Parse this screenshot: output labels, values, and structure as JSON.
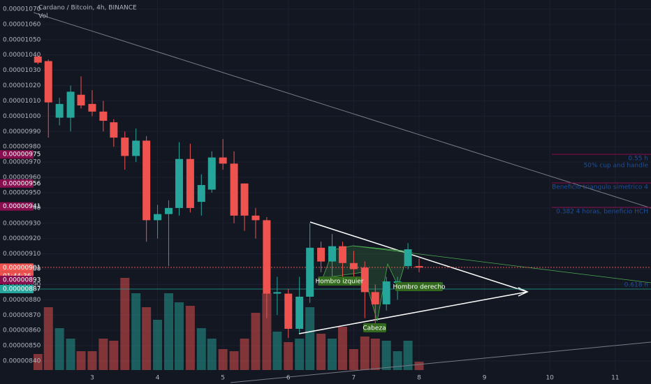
{
  "chart_data": {
    "type": "candlestick",
    "title": "Cardano / Bitcoin, 4h, BINANCE",
    "volume_label": "Vol",
    "countdown": "01:44:36",
    "up_color": "#26a69a",
    "down_color": "#ef5350",
    "x": [
      2.17,
      2.33,
      2.5,
      2.67,
      2.83,
      3,
      3.17,
      3.33,
      3.5,
      3.67,
      3.83,
      4,
      4.17,
      4.33,
      4.5,
      4.67,
      4.83,
      5,
      5.17,
      5.33,
      5.5,
      5.67,
      5.83,
      6,
      6.17,
      6.33,
      6.5,
      6.67,
      6.83,
      7,
      7.17,
      7.33,
      7.5,
      7.67,
      7.83,
      8
    ],
    "open": [
      1.039e-05,
      1.036e-05,
      9.99e-06,
      9.99e-06,
      1.014e-05,
      1.008e-05,
      1.003e-05,
      9.96e-06,
      9.86e-06,
      9.74e-06,
      9.84e-06,
      9.32e-06,
      9.36e-06,
      9.4e-06,
      9.72e-06,
      9.44e-06,
      9.52e-06,
      9.73e-06,
      9.69e-06,
      9.56e-06,
      9.35e-06,
      9.32e-06,
      8.84e-06,
      8.84e-06,
      8.61e-06,
      8.82e-06,
      9.14e-06,
      9.05e-06,
      9.15e-06,
      9.04e-06,
      9.01e-06,
      8.85e-06,
      8.77e-06,
      8.91e-06,
      9.02e-06,
      9.02e-06
    ],
    "high": [
      1.04e-05,
      1.037e-05,
      1.012e-05,
      1.02e-05,
      1.026e-05,
      1.017e-05,
      1.01e-05,
      9.98e-06,
      9.9e-06,
      9.92e-06,
      9.87e-06,
      9.42e-06,
      9.45e-06,
      9.83e-06,
      9.82e-06,
      9.62e-06,
      9.77e-06,
      9.85e-06,
      9.77e-06,
      9.56e-06,
      9.4e-06,
      9.34e-06,
      8.95e-06,
      8.87e-06,
      8.95e-06,
      9.3e-06,
      9.18e-06,
      9.23e-06,
      9.18e-06,
      9.12e-06,
      9.05e-06,
      8.9e-06,
      8.95e-06,
      8.95e-06,
      9.17e-06,
      9.07e-06
    ],
    "low": [
      1.034e-05,
      9.86e-06,
      9.94e-06,
      9.9e-06,
      1.005e-05,
      1e-05,
      9.9e-06,
      9.8e-06,
      9.65e-06,
      9.7e-06,
      9.18e-06,
      9.2e-06,
      9.02e-06,
      9.35e-06,
      9.37e-06,
      9.35e-06,
      9.5e-06,
      9.65e-06,
      9.3e-06,
      9.25e-06,
      9.2e-06,
      8.68e-06,
      8.7e-06,
      8.55e-06,
      8.58e-06,
      8.78e-06,
      8.98e-06,
      8.92e-06,
      8.93e-06,
      8.93e-06,
      8.68e-06,
      8.64e-06,
      8.73e-06,
      8.8e-06,
      9e-06,
      8.98e-06
    ],
    "close": [
      1.035e-05,
      1.009e-05,
      1.008e-05,
      1.016e-05,
      1.007e-05,
      1.003e-05,
      9.97e-06,
      9.86e-06,
      9.74e-06,
      9.84e-06,
      9.32e-06,
      9.36e-06,
      9.4e-06,
      9.72e-06,
      9.4e-06,
      9.55e-06,
      9.73e-06,
      9.69e-06,
      9.35e-06,
      9.35e-06,
      9.32e-06,
      8.84e-06,
      8.85e-06,
      8.61e-06,
      8.82e-06,
      9.14e-06,
      9.05e-06,
      9.15e-06,
      9.04e-06,
      9e-06,
      8.85e-06,
      8.77e-06,
      8.92e-06,
      8.92e-06,
      9.13e-06,
      9.01e-06
    ],
    "volume": [
      23,
      90,
      60,
      45,
      27,
      27,
      45,
      42,
      132,
      110,
      90,
      72,
      110,
      97,
      92,
      60,
      45,
      30,
      27,
      45,
      82,
      110,
      55,
      40,
      45,
      90,
      52,
      45,
      62,
      30,
      48,
      45,
      42,
      27,
      42,
      12
    ],
    "vlim": [
      0,
      250
    ],
    "xlim": [
      2.103,
      11.547
    ],
    "xticks": [
      3,
      4,
      5,
      6,
      7,
      8,
      9,
      10,
      11
    ],
    "ylim": [
      8.4e-06,
      1.07e-05
    ],
    "yticks": [
      {
        "value": 1.07e-05,
        "label": "0.00001070"
      },
      {
        "value": 1.06e-05,
        "label": "0.00001060"
      },
      {
        "value": 1.05e-05,
        "label": "0.00001050"
      },
      {
        "value": 1.04e-05,
        "label": "0.00001040"
      },
      {
        "value": 1.03e-05,
        "label": "0.00001030"
      },
      {
        "value": 1.02e-05,
        "label": "0.00001020"
      },
      {
        "value": 1.01e-05,
        "label": "0.00001010"
      },
      {
        "value": 1e-05,
        "label": "0.00001000"
      },
      {
        "value": 9.9e-06,
        "label": "0.00000990"
      },
      {
        "value": 9.8e-06,
        "label": "0.00000980"
      },
      {
        "value": 9.7e-06,
        "label": "0.00000970"
      },
      {
        "value": 9.6e-06,
        "label": "0.00000960"
      },
      {
        "value": 9.5e-06,
        "label": "0.00000950"
      },
      {
        "value": 9.4e-06,
        "label": "0.00000940"
      },
      {
        "value": 9.3e-06,
        "label": "0.00000930"
      },
      {
        "value": 9.2e-06,
        "label": "0.00000920"
      },
      {
        "value": 9.1e-06,
        "label": "0.00000910"
      },
      {
        "value": 9e-06,
        "label": "0.00000900"
      },
      {
        "value": 8.9e-06,
        "label": "0.00000890"
      },
      {
        "value": 8.8e-06,
        "label": "0.00000880"
      },
      {
        "value": 8.7e-06,
        "label": "0.00000870"
      },
      {
        "value": 8.6e-06,
        "label": "0.00000860"
      },
      {
        "value": 8.5e-06,
        "label": "0.00000850"
      },
      {
        "value": 8.4e-06,
        "label": "0.00000840"
      }
    ],
    "price_tags": [
      {
        "value": 9.75e-06,
        "label": "0.00000975",
        "color": "#880e4f"
      },
      {
        "value": 9.56e-06,
        "label": "0.00000956",
        "color": "#880e4f"
      },
      {
        "value": 9.41e-06,
        "label": "0.00000941",
        "color": "#880e4f"
      },
      {
        "value": 9.01e-06,
        "label": "0.00000901",
        "color": "#ef5350"
      },
      {
        "value": 8.93e-06,
        "label": "0.00000893",
        "color": "#880e4f"
      },
      {
        "value": 8.87e-06,
        "label": "0.00000887",
        "color": "#26a69a"
      }
    ],
    "annotations": [
      "Hombro izquier",
      "Cabeza",
      "Hombro derecho",
      "0.55 h",
      "50% cup and handle",
      "Beneficio triangulo simetrico 4",
      "0.382 4 horas, beneficio HCH",
      "0.618 h"
    ]
  }
}
